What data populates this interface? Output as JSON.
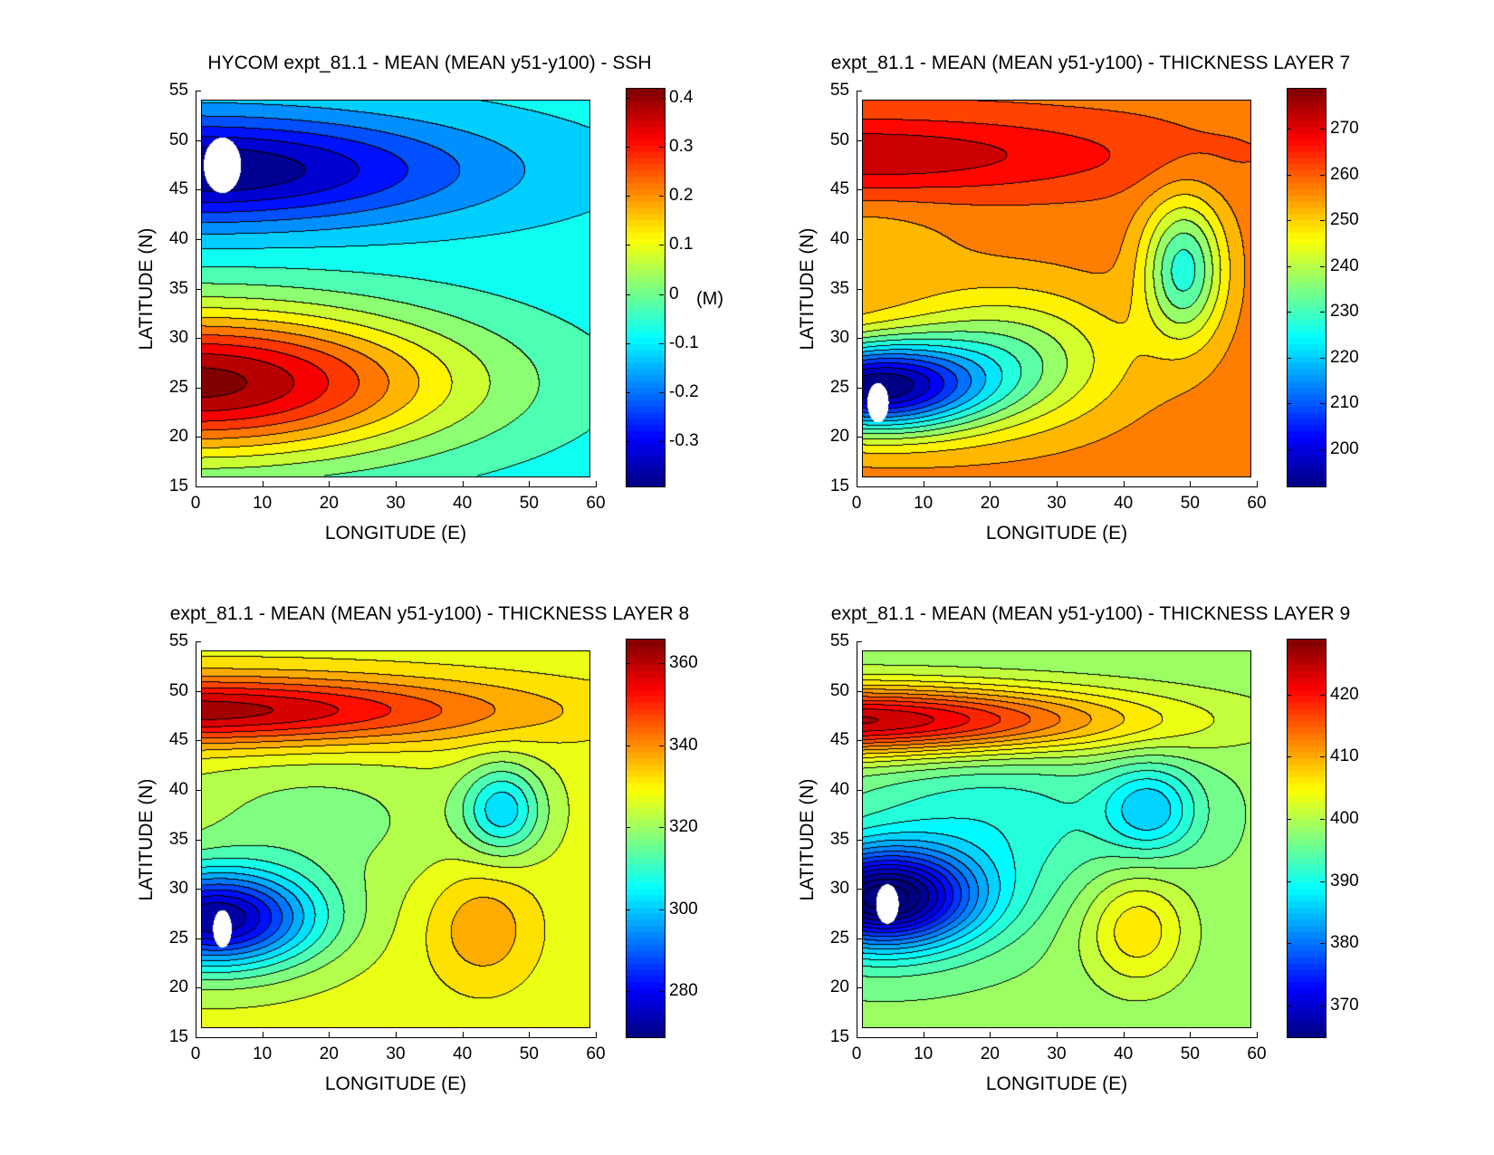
{
  "chart_data": [
    {
      "type": "heatmap",
      "subtype": "filled-contour",
      "title": "HYCOM expt_81.1 - MEAN (MEAN y51-y100) - SSH",
      "xlabel": "LONGITUDE (E)",
      "ylabel": "LATITUDE (N)",
      "xlim": [
        0,
        60
      ],
      "ylim": [
        15,
        55
      ],
      "xticks": [
        "0",
        "10",
        "20",
        "30",
        "40",
        "50",
        "60"
      ],
      "yticks": [
        "15",
        "20",
        "25",
        "30",
        "35",
        "40",
        "45",
        "50",
        "55"
      ],
      "colorbar": {
        "range": [
          -0.39,
          0.42
        ],
        "ticks": [
          "-0.3",
          "-0.2",
          "-0.1",
          "0",
          "0.1",
          "0.2",
          "0.3",
          "0.4"
        ],
        "tick_values": [
          -0.3,
          -0.2,
          -0.1,
          0,
          0.1,
          0.2,
          0.3,
          0.4
        ],
        "unit": "(M)"
      },
      "contour_interval": 0.05,
      "field": {
        "base": -0.08,
        "features": [
          {
            "lon": 0,
            "lat": 47,
            "amp": -0.32,
            "sx": 40,
            "sy": 5.5
          },
          {
            "lon": 0,
            "lat": 25.5,
            "amp": 0.5,
            "sx": 38,
            "sy": 7.5
          }
        ]
      },
      "land_mask": {
        "lon": 4,
        "lat": 47.5,
        "rx": 2.8,
        "ry": 2.8
      }
    },
    {
      "type": "heatmap",
      "subtype": "filled-contour",
      "title": "expt_81.1 - MEAN (MEAN y51-y100) - THICKNESS LAYER 7",
      "xlabel": "LONGITUDE (E)",
      "ylabel": "LATITUDE (N)",
      "xlim": [
        0,
        60
      ],
      "ylim": [
        15,
        55
      ],
      "xticks": [
        "0",
        "10",
        "20",
        "30",
        "40",
        "50",
        "60"
      ],
      "yticks": [
        "15",
        "20",
        "25",
        "30",
        "35",
        "40",
        "45",
        "50",
        "55"
      ],
      "colorbar": {
        "range": [
          192,
          279
        ],
        "ticks": [
          "200",
          "210",
          "220",
          "230",
          "240",
          "250",
          "260",
          "270"
        ],
        "tick_values": [
          200,
          210,
          220,
          230,
          240,
          250,
          260,
          270
        ]
      },
      "contour_interval": 5,
      "field": {
        "base": 258,
        "features": [
          {
            "lon": 0,
            "lat": 48.5,
            "amp": 16,
            "sx": 42,
            "sy": 4
          },
          {
            "lon": 2,
            "lat": 25,
            "amp": -62,
            "sx": 16,
            "sy": 4.5
          },
          {
            "lon": 22,
            "lat": 28,
            "amp": -22,
            "sx": 18,
            "sy": 7
          },
          {
            "lon": 49,
            "lat": 37,
            "amp": -30,
            "sx": 6,
            "sy": 7
          },
          {
            "lon": 0,
            "lat": 40,
            "amp": -6,
            "sx": 14,
            "sy": 4
          }
        ]
      },
      "land_mask": {
        "lon": 3.2,
        "lat": 23.5,
        "rx": 1.6,
        "ry": 2
      }
    },
    {
      "type": "heatmap",
      "subtype": "filled-contour",
      "title": "expt_81.1 - MEAN (MEAN y51-y100) - THICKNESS LAYER 8",
      "xlabel": "LONGITUDE (E)",
      "ylabel": "LATITUDE (N)",
      "xlim": [
        0,
        60
      ],
      "ylim": [
        15,
        55
      ],
      "xticks": [
        "0",
        "10",
        "20",
        "30",
        "40",
        "50",
        "60"
      ],
      "yticks": [
        "15",
        "20",
        "25",
        "30",
        "35",
        "40",
        "45",
        "50",
        "55"
      ],
      "colorbar": {
        "range": [
          269,
          366
        ],
        "ticks": [
          "280",
          "300",
          "320",
          "340",
          "360"
        ],
        "tick_values": [
          280,
          300,
          320,
          340,
          360
        ]
      },
      "contour_interval": 5,
      "field": {
        "base": 327,
        "features": [
          {
            "lon": 0,
            "lat": 48,
            "amp": 36,
            "sx": 45,
            "sy": 3.5
          },
          {
            "lon": 3,
            "lat": 27,
            "amp": -56,
            "sx": 15,
            "sy": 5
          },
          {
            "lon": 18,
            "lat": 37,
            "amp": -9,
            "sx": 22,
            "sy": 7
          },
          {
            "lon": 46,
            "lat": 38,
            "amp": -24,
            "sx": 6,
            "sy": 4.5
          },
          {
            "lon": 43,
            "lat": 26,
            "amp": 12,
            "sx": 8,
            "sy": 6
          }
        ]
      },
      "land_mask": {
        "lon": 4,
        "lat": 26,
        "rx": 1.4,
        "ry": 1.9
      }
    },
    {
      "type": "heatmap",
      "subtype": "filled-contour",
      "title": "expt_81.1 - MEAN (MEAN y51-y100) - THICKNESS LAYER 9",
      "xlabel": "LONGITUDE (E)",
      "ylabel": "LATITUDE (N)",
      "xlim": [
        0,
        60
      ],
      "ylim": [
        15,
        55
      ],
      "xticks": [
        "0",
        "10",
        "20",
        "30",
        "40",
        "50",
        "60"
      ],
      "yticks": [
        "15",
        "20",
        "25",
        "30",
        "35",
        "40",
        "45",
        "50",
        "55"
      ],
      "colorbar": {
        "range": [
          365,
          429
        ],
        "ticks": [
          "370",
          "380",
          "390",
          "400",
          "410",
          "420"
        ],
        "tick_values": [
          370,
          380,
          390,
          400,
          410,
          420
        ]
      },
      "contour_interval": 2.5,
      "field": {
        "base": 398,
        "features": [
          {
            "lon": 0,
            "lat": 47,
            "amp": 28,
            "sx": 40,
            "sy": 3.5
          },
          {
            "lon": 4,
            "lat": 29,
            "amp": -36,
            "sx": 14,
            "sy": 5
          },
          {
            "lon": 20,
            "lat": 37,
            "amp": -7,
            "sx": 22,
            "sy": 8
          },
          {
            "lon": 44,
            "lat": 38,
            "amp": -11,
            "sx": 7,
            "sy": 4.5
          },
          {
            "lon": 42,
            "lat": 26,
            "amp": 9,
            "sx": 8,
            "sy": 6
          }
        ]
      },
      "land_mask": {
        "lon": 4.6,
        "lat": 28.5,
        "rx": 1.7,
        "ry": 2
      }
    }
  ]
}
